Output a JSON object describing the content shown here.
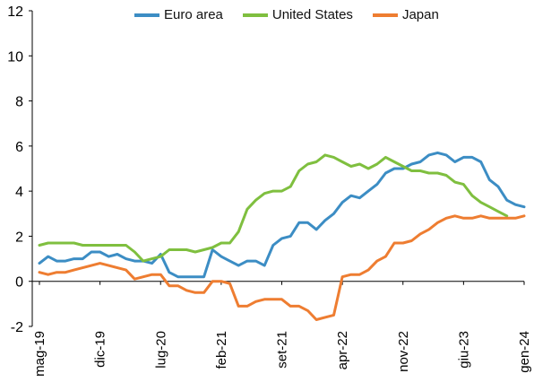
{
  "chart_data": {
    "type": "line",
    "title": "",
    "xlabel": "",
    "ylabel": "",
    "ylim": [
      -2,
      12
    ],
    "yticks": [
      -2,
      0,
      2,
      4,
      6,
      8,
      10,
      12
    ],
    "xlim": [
      "2019-05",
      "2024-01"
    ],
    "xtick_labels": [
      "mag-19",
      "dic-19",
      "lug-20",
      "feb-21",
      "set-21",
      "apr-22",
      "nov-22",
      "giu-23",
      "gen-24"
    ],
    "legend": {
      "position": "top"
    },
    "x": [
      "2019-05",
      "2019-06",
      "2019-07",
      "2019-08",
      "2019-09",
      "2019-10",
      "2019-11",
      "2019-12",
      "2020-01",
      "2020-02",
      "2020-03",
      "2020-04",
      "2020-05",
      "2020-06",
      "2020-07",
      "2020-08",
      "2020-09",
      "2020-10",
      "2020-11",
      "2020-12",
      "2021-01",
      "2021-02",
      "2021-03",
      "2021-04",
      "2021-05",
      "2021-06",
      "2021-07",
      "2021-08",
      "2021-09",
      "2021-10",
      "2021-11",
      "2021-12",
      "2022-01",
      "2022-02",
      "2022-03",
      "2022-04",
      "2022-05",
      "2022-06",
      "2022-07",
      "2022-08",
      "2022-09",
      "2022-10",
      "2022-11",
      "2022-12",
      "2023-01",
      "2023-02",
      "2023-03",
      "2023-04",
      "2023-05",
      "2023-06",
      "2023-07",
      "2023-08",
      "2023-09",
      "2023-10",
      "2023-11",
      "2023-12",
      "2024-01"
    ],
    "series": [
      {
        "name": "Euro area",
        "color": "#3c8dc4",
        "values": [
          0.8,
          1.1,
          0.9,
          0.9,
          1.0,
          1.0,
          1.3,
          1.3,
          1.1,
          1.2,
          1.0,
          0.9,
          0.9,
          0.8,
          1.2,
          0.4,
          0.2,
          0.2,
          0.2,
          0.2,
          1.4,
          1.1,
          0.9,
          0.7,
          0.9,
          0.9,
          0.7,
          1.6,
          1.9,
          2.0,
          2.6,
          2.6,
          2.3,
          2.7,
          3.0,
          3.5,
          3.8,
          3.7,
          4.0,
          4.3,
          4.8,
          5.0,
          5.0,
          5.2,
          5.3,
          5.6,
          5.7,
          5.6,
          5.3,
          5.5,
          5.5,
          5.3,
          4.5,
          4.2,
          3.6,
          3.4,
          3.3
        ]
      },
      {
        "name": "United States",
        "color": "#7fbf3f",
        "values": [
          1.6,
          1.7,
          1.7,
          1.7,
          1.7,
          1.6,
          1.6,
          1.6,
          1.6,
          1.6,
          1.6,
          1.3,
          0.9,
          1.0,
          1.1,
          1.4,
          1.4,
          1.4,
          1.3,
          1.4,
          1.5,
          1.7,
          1.7,
          2.2,
          3.2,
          3.6,
          3.9,
          4.0,
          4.0,
          4.2,
          4.9,
          5.2,
          5.3,
          5.6,
          5.5,
          5.3,
          5.1,
          5.2,
          5.0,
          5.2,
          5.5,
          5.3,
          5.1,
          4.9,
          4.9,
          4.8,
          4.8,
          4.7,
          4.4,
          4.3,
          3.8,
          3.5,
          3.3,
          3.1,
          2.9,
          null,
          null
        ]
      },
      {
        "name": "Japan",
        "color": "#ee7d31",
        "values": [
          0.4,
          0.3,
          0.4,
          0.4,
          0.5,
          0.6,
          0.7,
          0.8,
          0.7,
          0.6,
          0.5,
          0.1,
          0.2,
          0.3,
          0.3,
          -0.2,
          -0.2,
          -0.4,
          -0.5,
          -0.5,
          0.0,
          0.0,
          -0.1,
          -1.1,
          -1.1,
          -0.9,
          -0.8,
          -0.8,
          -0.8,
          -1.1,
          -1.1,
          -1.3,
          -1.7,
          -1.6,
          -1.5,
          0.2,
          0.3,
          0.3,
          0.5,
          0.9,
          1.1,
          1.7,
          1.7,
          1.8,
          2.1,
          2.3,
          2.6,
          2.8,
          2.9,
          2.8,
          2.8,
          2.9,
          2.8,
          2.8,
          2.8,
          2.8,
          2.9
        ]
      }
    ]
  }
}
